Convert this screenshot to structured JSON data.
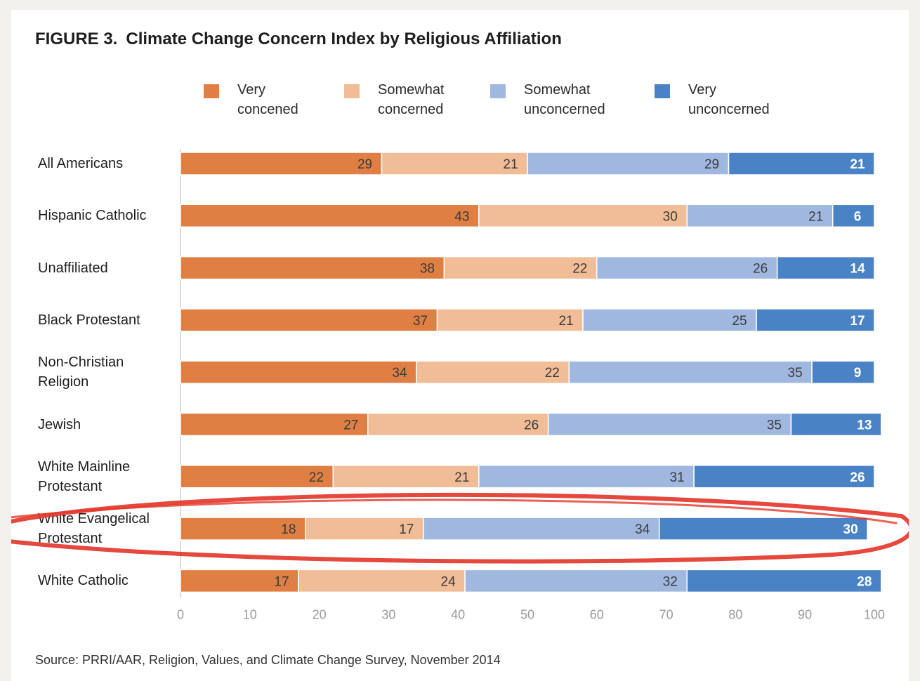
{
  "chart_data": {
    "type": "bar",
    "orientation": "horizontal",
    "stacked": true,
    "figure_number": "FIGURE 3.",
    "title": "Climate Change Concern Index by Religious Affiliation",
    "categories": [
      "All Americans",
      "Hispanic Catholic",
      "Unaffiliated",
      "Black Protestant",
      "Non-Christian\nReligion",
      "Jewish",
      "White Mainline\nProtestant",
      "White Evangelical\nProtestant",
      "White Catholic"
    ],
    "series": [
      {
        "name": "Very\nconcened",
        "color": "#e07f43",
        "values": [
          29,
          43,
          38,
          37,
          34,
          27,
          22,
          18,
          17
        ]
      },
      {
        "name": "Somewhat\nconcerned",
        "color": "#f0bd96",
        "values": [
          21,
          30,
          22,
          21,
          22,
          26,
          21,
          17,
          24
        ]
      },
      {
        "name": "Somewhat\nunconcerned",
        "color": "#a0b8e0",
        "values": [
          29,
          21,
          26,
          25,
          35,
          35,
          31,
          34,
          32
        ]
      },
      {
        "name": "Very\nunconcerned",
        "color": "#4a82c6",
        "values": [
          21,
          6,
          14,
          17,
          9,
          13,
          26,
          30,
          28
        ]
      }
    ],
    "xlim": [
      0,
      100
    ],
    "xticks": [
      0,
      10,
      20,
      30,
      40,
      50,
      60,
      70,
      80,
      90,
      100
    ],
    "xlabel": "",
    "ylabel": "",
    "legend_position": "top",
    "highlighted_category": "White Evangelical\nProtestant",
    "highlight_color": "#e3382b"
  },
  "source": "Source: PRRI/AAR, Religion, Values, and Climate Change Survey, November 2014"
}
